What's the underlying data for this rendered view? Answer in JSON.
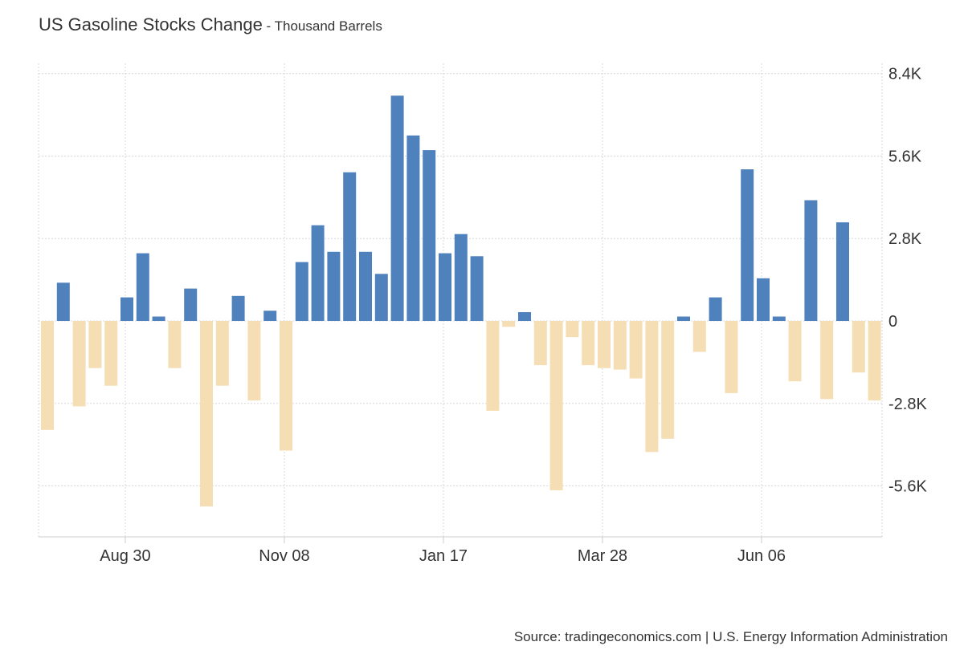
{
  "header": {
    "title": "US Gasoline Stocks Change",
    "separator": " - ",
    "subtitle": "Thousand Barrels"
  },
  "footer": {
    "source": "Source: tradingeconomics.com | U.S. Energy Information Administration"
  },
  "colors": {
    "positive": "#4f81bd",
    "negative": "#f5deb3",
    "grid": "#d9d9d9",
    "axis": "#cccccc"
  },
  "chart_data": {
    "type": "bar",
    "title": "US Gasoline Stocks Change",
    "subtitle": "Thousand Barrels",
    "ylim": [
      -7.3,
      8.4
    ],
    "y_ticks": [
      8.4,
      5.6,
      2.8,
      0,
      -2.8,
      -5.6
    ],
    "y_tick_labels": [
      "8.4K",
      "5.6K",
      "2.8K",
      "0",
      "-2.8K",
      "-5.6K"
    ],
    "x_tick_labels": [
      "Aug 30",
      "Nov 08",
      "Jan 17",
      "Mar 28",
      "Jun 06"
    ],
    "x_tick_bar_positions": [
      5.3,
      15.3,
      25.3,
      35.3,
      45.3
    ],
    "grid": true,
    "legend": "none",
    "values": [
      -3.7,
      1.3,
      -2.9,
      -1.6,
      -2.2,
      0.8,
      2.3,
      0.15,
      -1.6,
      1.1,
      -6.3,
      -2.2,
      0.85,
      -2.7,
      0.35,
      -4.4,
      2.0,
      3.25,
      2.35,
      5.05,
      2.35,
      1.6,
      7.65,
      6.3,
      5.8,
      2.3,
      2.95,
      2.2,
      -3.05,
      -0.2,
      0.3,
      -1.5,
      -5.75,
      -0.55,
      -1.5,
      -1.6,
      -1.65,
      -1.95,
      -4.45,
      -4.0,
      0.15,
      -1.05,
      0.8,
      -2.45,
      5.15,
      1.45,
      0.15,
      -2.05,
      4.1,
      -2.65,
      3.35,
      -1.75,
      -2.7
    ]
  }
}
